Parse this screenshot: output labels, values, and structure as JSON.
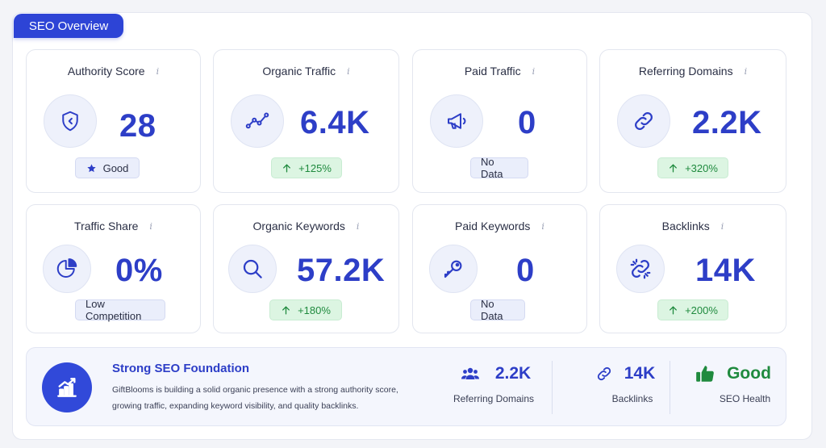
{
  "header": {
    "tab_label": "SEO Overview"
  },
  "info_glyph": "i",
  "cards": [
    {
      "title": "Authority Score",
      "value": "28",
      "icon": "shield-icon",
      "badge": "Good",
      "badge_icon": "star-icon",
      "badge_type": "neutral"
    },
    {
      "title": "Organic Traffic",
      "value": "6.4K",
      "icon": "trend-line-icon",
      "badge": "+125%",
      "badge_icon": "arrow-up-icon",
      "badge_type": "green"
    },
    {
      "title": "Paid Traffic",
      "value": "0",
      "icon": "megaphone-icon",
      "badge": "No Data",
      "badge_type": "neutral"
    },
    {
      "title": "Referring Domains",
      "value": "2.2K",
      "icon": "link-icon",
      "badge": "+320%",
      "badge_icon": "arrow-up-icon",
      "badge_type": "green"
    },
    {
      "title": "Traffic Share",
      "value": "0%",
      "icon": "pie-chart-icon",
      "badge": "Low Competition",
      "badge_type": "neutral"
    },
    {
      "title": "Organic Keywords",
      "value": "57.2K",
      "icon": "search-icon",
      "badge": "+180%",
      "badge_icon": "arrow-up-icon",
      "badge_type": "green"
    },
    {
      "title": "Paid Keywords",
      "value": "0",
      "icon": "key-icon",
      "badge": "No Data",
      "badge_type": "neutral"
    },
    {
      "title": "Backlinks",
      "value": "14K",
      "icon": "broken-link-icon",
      "badge": "+200%",
      "badge_icon": "arrow-up-icon",
      "badge_type": "green"
    }
  ],
  "summary": {
    "icon": "growth-chart-icon",
    "title": "Strong SEO Foundation",
    "description": "GiftBlooms is building a solid organic presence with a strong authority score, growing traffic, expanding keyword visibility, and quality backlinks.",
    "stats": [
      {
        "value": "2.2K",
        "label": "Referring Domains",
        "icon": "users-icon"
      },
      {
        "value": "14K",
        "label": "Backlinks",
        "icon": "link-icon"
      },
      {
        "value": "Good",
        "label": "SEO Health",
        "icon": "thumbs-up-icon",
        "color": "#1f8a3e"
      }
    ]
  },
  "colors": {
    "accent": "#2d44d6",
    "value": "#2d3ec7",
    "positive": "#1f8a3e",
    "positive_bg": "#dcf5e2"
  }
}
